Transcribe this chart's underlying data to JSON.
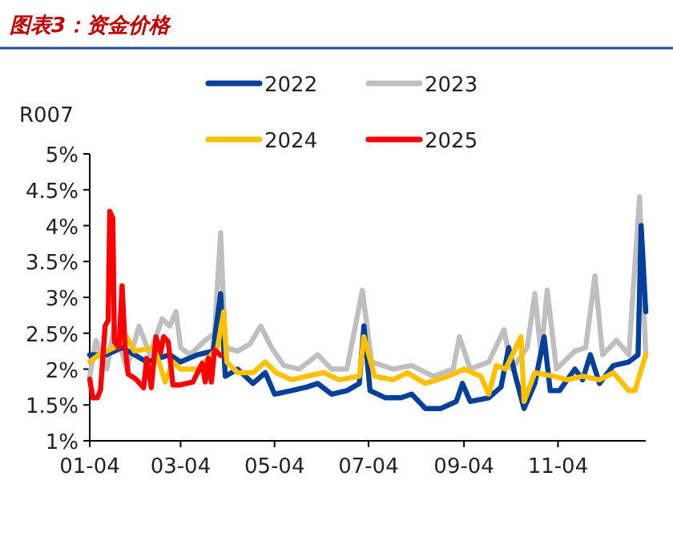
{
  "chart_data": {
    "type": "line",
    "title": "图表3：资金价格",
    "ylabel": "R007",
    "legend": "top",
    "line_style": "solid",
    "marker": "none",
    "xlim": [
      "--01-04",
      "--12-31"
    ],
    "xticks": [
      {
        "value": "--01-04",
        "label": "01-04"
      },
      {
        "value": "--03-04",
        "label": "03-04"
      },
      {
        "value": "--05-04",
        "label": "05-04"
      },
      {
        "value": "--07-04",
        "label": "07-04"
      },
      {
        "value": "--09-04",
        "label": "09-04"
      },
      {
        "value": "--11-04",
        "label": "11-04"
      }
    ],
    "ylim": [
      1,
      5
    ],
    "yticks": [
      {
        "value": 1,
        "label": "1%"
      },
      {
        "value": 1.5,
        "label": "1.5%"
      },
      {
        "value": 2,
        "label": "2%"
      },
      {
        "value": 2.5,
        "label": "2.5%"
      },
      {
        "value": 3,
        "label": "3%"
      },
      {
        "value": 3.5,
        "label": "3.5%"
      },
      {
        "value": 4,
        "label": "4%"
      },
      {
        "value": 4.5,
        "label": "4.5%"
      },
      {
        "value": 5,
        "label": "5%"
      }
    ],
    "series": [
      {
        "name": "2022",
        "color": "#003f9a",
        "x": [
          "--01-04",
          "--01-15",
          "--01-25",
          "--02-10",
          "--02-25",
          "--03-04",
          "--03-15",
          "--03-25",
          "--03-30",
          "--04-02",
          "--04-10",
          "--04-20",
          "--04-28",
          "--05-04",
          "--05-15",
          "--05-25",
          "--06-01",
          "--06-10",
          "--06-20",
          "--06-28",
          "--07-01",
          "--07-05",
          "--07-15",
          "--07-25",
          "--08-01",
          "--08-10",
          "--08-20",
          "--08-30",
          "--09-03",
          "--09-08",
          "--09-20",
          "--09-28",
          "--10-03",
          "--10-08",
          "--10-13",
          "--10-20",
          "--10-26",
          "--10-30",
          "--11-05",
          "--11-15",
          "--11-20",
          "--11-25",
          "--12-01",
          "--12-10",
          "--12-20",
          "--12-26",
          "--12-28",
          "--12-31"
        ],
        "values": [
          2.2,
          2.2,
          2.3,
          2.1,
          2.2,
          2.1,
          2.2,
          2.25,
          3.05,
          1.9,
          2.0,
          1.8,
          1.95,
          1.65,
          1.7,
          1.75,
          1.8,
          1.65,
          1.7,
          1.8,
          2.6,
          1.7,
          1.6,
          1.6,
          1.65,
          1.45,
          1.45,
          1.55,
          1.8,
          1.55,
          1.6,
          1.75,
          2.3,
          1.85,
          1.45,
          1.8,
          2.45,
          1.7,
          1.7,
          2.0,
          1.85,
          2.2,
          1.8,
          2.05,
          2.1,
          2.2,
          4.0,
          2.8
        ]
      },
      {
        "name": "2023",
        "color": "#bfbfbf",
        "x": [
          "--01-04",
          "--01-08",
          "--01-15",
          "--01-20",
          "--01-28",
          "--02-05",
          "--02-12",
          "--02-20",
          "--02-25",
          "--03-01",
          "--03-04",
          "--03-10",
          "--03-20",
          "--03-26",
          "--03-30",
          "--04-02",
          "--04-10",
          "--04-18",
          "--04-25",
          "--05-02",
          "--05-10",
          "--05-20",
          "--06-01",
          "--06-10",
          "--06-20",
          "--06-30",
          "--07-06",
          "--07-20",
          "--08-01",
          "--08-15",
          "--08-28",
          "--09-01",
          "--09-08",
          "--09-20",
          "--09-30",
          "--10-05",
          "--10-15",
          "--10-20",
          "--10-24",
          "--10-28",
          "--11-03",
          "--11-15",
          "--11-22",
          "--11-28",
          "--12-03",
          "--12-12",
          "--12-20",
          "--12-27",
          "--12-31"
        ],
        "values": [
          1.9,
          2.4,
          2.0,
          2.6,
          2.0,
          2.6,
          2.2,
          2.7,
          2.6,
          2.8,
          2.3,
          2.2,
          2.4,
          2.5,
          3.9,
          2.3,
          2.25,
          2.35,
          2.6,
          2.3,
          2.05,
          2.0,
          2.2,
          2.0,
          2.0,
          3.1,
          2.1,
          2.0,
          2.05,
          1.9,
          2.0,
          2.45,
          2.0,
          2.1,
          2.55,
          2.0,
          2.3,
          3.05,
          2.2,
          3.1,
          2.0,
          2.25,
          2.3,
          3.3,
          2.2,
          2.4,
          2.2,
          4.4,
          2.2
        ]
      },
      {
        "name": "2024",
        "color": "#ffc000",
        "x": [
          "--01-04",
          "--01-10",
          "--01-20",
          "--01-28",
          "--02-02",
          "--02-15",
          "--02-22",
          "--02-27",
          "--03-04",
          "--03-15",
          "--03-22",
          "--03-28",
          "--04-01",
          "--04-03",
          "--04-10",
          "--04-20",
          "--04-28",
          "--05-05",
          "--05-15",
          "--05-25",
          "--06-05",
          "--06-15",
          "--06-28",
          "--07-01",
          "--07-08",
          "--07-20",
          "--07-29",
          "--08-10",
          "--08-25",
          "--09-04",
          "--09-15",
          "--09-20",
          "--09-25",
          "--10-01",
          "--10-11",
          "--10-13",
          "--10-20",
          "--11-01",
          "--11-10",
          "--11-20",
          "--12-01",
          "--12-10",
          "--12-20",
          "--12-24",
          "--12-31"
        ],
        "values": [
          2.1,
          2.2,
          2.3,
          2.45,
          2.25,
          2.3,
          1.82,
          2.1,
          2.0,
          2.0,
          2.15,
          2.3,
          2.8,
          2.1,
          1.95,
          1.95,
          2.1,
          1.95,
          1.85,
          1.9,
          1.95,
          1.85,
          1.9,
          2.45,
          1.9,
          1.85,
          1.95,
          1.8,
          1.9,
          2.0,
          1.9,
          1.65,
          2.05,
          2.0,
          2.45,
          1.55,
          1.95,
          1.9,
          1.85,
          1.9,
          1.85,
          1.95,
          1.7,
          1.7,
          2.2
        ]
      },
      {
        "name": "2025",
        "color": "#ff0000",
        "x": [
          "--01-04",
          "--01-06",
          "--01-09",
          "--01-11",
          "--01-14",
          "--01-16",
          "--01-17",
          "--01-19",
          "--01-20",
          "--01-23",
          "--01-25",
          "--01-27",
          "--01-29",
          "--02-03",
          "--02-08",
          "--02-10",
          "--02-13",
          "--02-16",
          "--02-19",
          "--02-21",
          "--02-24",
          "--02-27",
          "--03-04",
          "--03-12",
          "--03-18",
          "--03-20",
          "--03-22",
          "--03-24",
          "--03-26",
          "--03-30"
        ],
        "values": [
          1.86,
          1.6,
          1.6,
          1.71,
          2.6,
          2.68,
          4.2,
          4.1,
          2.38,
          2.3,
          3.16,
          2.3,
          1.93,
          1.86,
          1.74,
          2.15,
          1.74,
          2.45,
          2.23,
          2.45,
          2.38,
          1.78,
          1.78,
          1.82,
          2.08,
          1.82,
          2.15,
          1.82,
          2.27,
          2.19
        ]
      }
    ]
  }
}
